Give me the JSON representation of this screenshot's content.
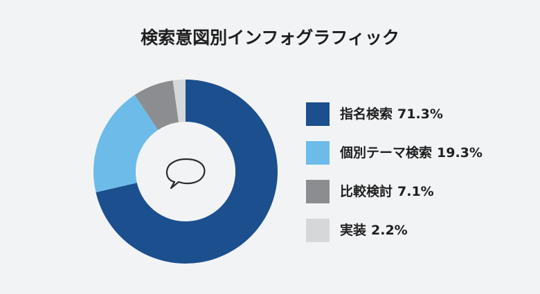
{
  "chart_data": {
    "type": "donut",
    "title": "検索意図別インフォグラフィック",
    "categories": [
      "指名検索",
      "個別テーマ検索",
      "比較検討",
      "実装"
    ],
    "values": [
      71.3,
      19.3,
      7.1,
      2.2
    ],
    "value_labels": [
      "71.3%",
      "19.3%",
      "7.1%",
      "2.2%"
    ],
    "colors": [
      "#1b4f8e",
      "#6dbbe9",
      "#8b8d90",
      "#d6d7d9"
    ]
  }
}
